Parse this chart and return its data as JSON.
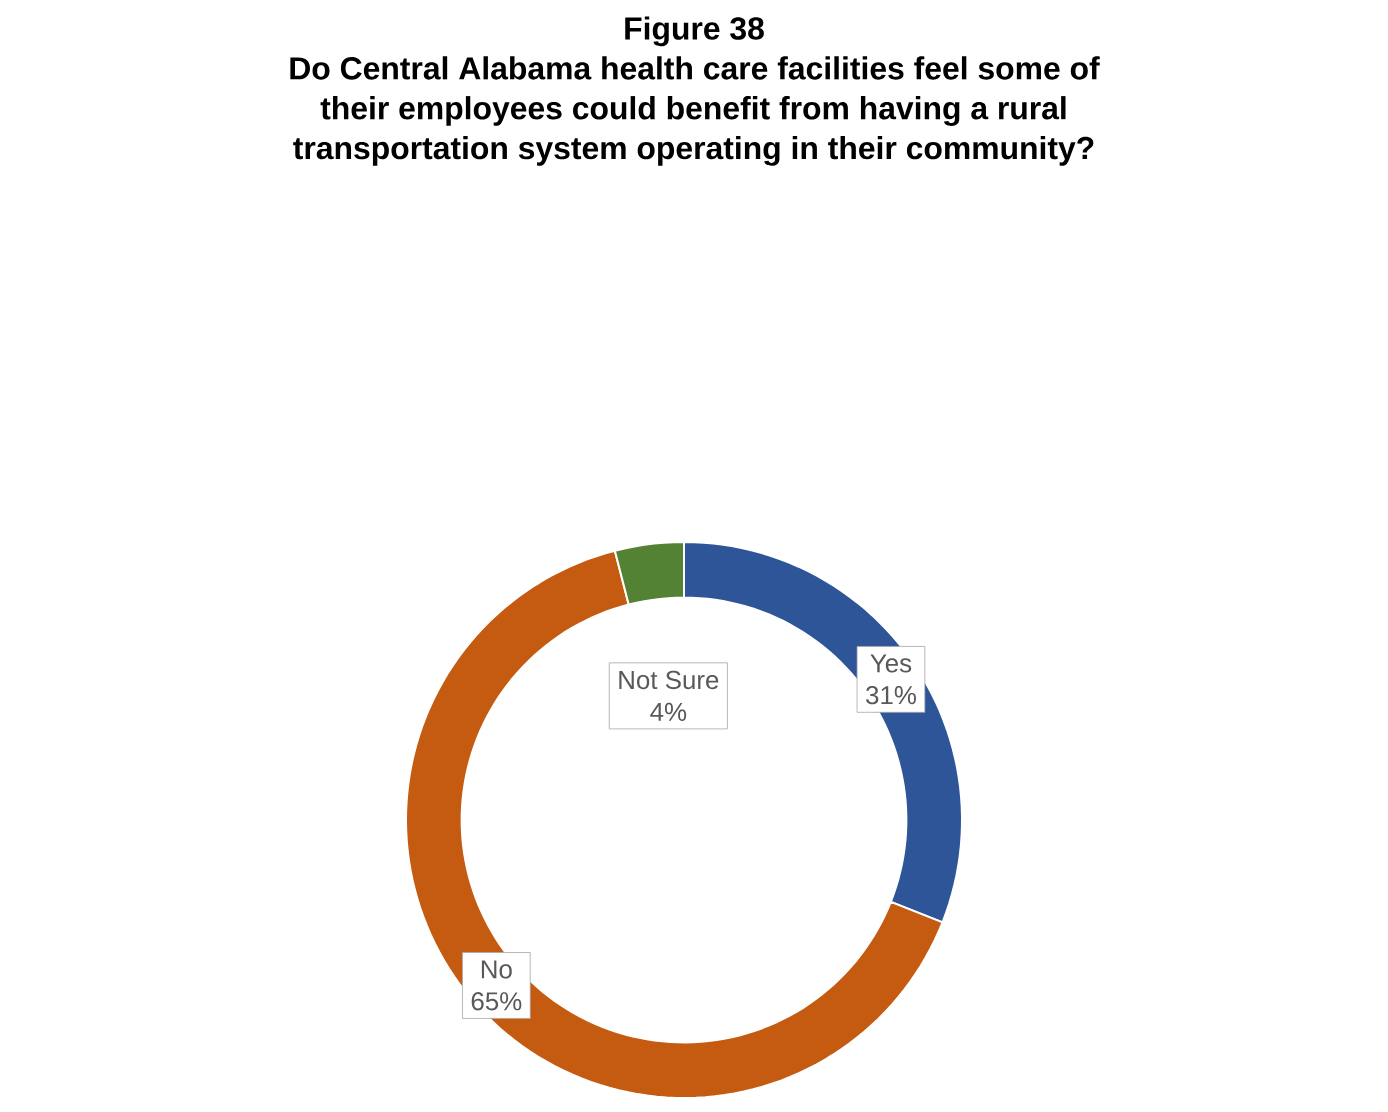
{
  "chart_data": {
    "type": "donut",
    "title": "Figure 38",
    "subtitle": "Do Central Alabama health care facilities feel some of their employees could benefit from having a rural transportation system operating in their community?",
    "categories": [
      "Yes",
      "No",
      "Not Sure"
    ],
    "values": [
      31,
      65,
      4
    ],
    "value_labels": [
      "31%",
      "65%",
      "4%"
    ],
    "colors": [
      "#2e5597",
      "#c55a11",
      "#548235"
    ]
  }
}
